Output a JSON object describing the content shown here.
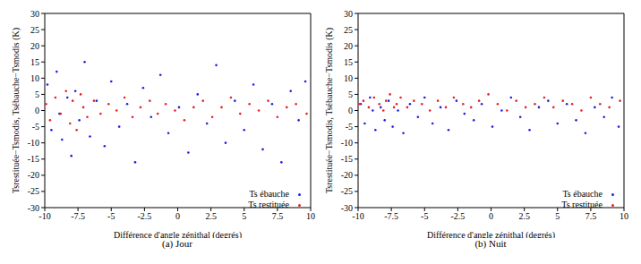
{
  "chart_data": [
    {
      "type": "scatter",
      "title": "(a) Jour",
      "x_label": "Différence d'angle zénithal (degrés)",
      "y_label": "Tsrestituée−Tsmodis, Tsébauche−Tsmodis (K)",
      "xlim": [
        -10,
        10
      ],
      "xticks": [
        -10,
        -7.5,
        -5,
        -2.5,
        0,
        2.5,
        5,
        7.5,
        10
      ],
      "ylim": [
        -30,
        30
      ],
      "yticks": [
        -30,
        -25,
        -20,
        -15,
        -10,
        -5,
        0,
        5,
        10,
        15,
        20,
        25,
        30
      ],
      "grid": false,
      "legend": "bottom right",
      "marker": "point",
      "series": [
        {
          "name": "Ts ébauche",
          "color": "#1f1fe8",
          "x": [
            -9.8,
            -9.5,
            -9.1,
            -8.7,
            -8.3,
            -8.0,
            -7.7,
            -7.4,
            -7.0,
            -6.6,
            -6.1,
            -5.5,
            -5.0,
            -4.4,
            -3.8,
            -3.2,
            -2.6,
            -2.0,
            -1.3,
            -0.7,
            0.1,
            0.8,
            1.5,
            2.2,
            2.9,
            3.6,
            4.3,
            5.0,
            5.7,
            6.4,
            7.1,
            7.8,
            8.5,
            9.1,
            9.6,
            -8.9
          ],
          "values": [
            8,
            -6,
            12,
            -9,
            4,
            -14,
            6,
            -3,
            15,
            -8,
            3,
            -11,
            9,
            -5,
            2,
            -16,
            7,
            -2,
            11,
            -7,
            1,
            -13,
            5,
            -4,
            14,
            -10,
            3,
            -6,
            8,
            -12,
            2,
            -16,
            6,
            -3,
            9,
            -1
          ]
        },
        {
          "name": "Ts restituée",
          "color": "#e8202a",
          "x": [
            -9.9,
            -9.6,
            -9.2,
            -8.8,
            -8.4,
            -8.1,
            -7.9,
            -7.6,
            -7.3,
            -7.1,
            -6.8,
            -6.3,
            -5.8,
            -5.2,
            -4.6,
            -4.0,
            -3.4,
            -2.8,
            -2.1,
            -1.5,
            -0.9,
            -0.2,
            0.5,
            1.2,
            1.9,
            2.6,
            3.3,
            4.0,
            4.7,
            5.4,
            6.1,
            6.8,
            7.5,
            8.2,
            8.9,
            9.7
          ],
          "values": [
            2,
            -3,
            4,
            -1,
            6,
            -4,
            3,
            -6,
            5,
            1,
            -2,
            3,
            -1,
            2,
            0,
            4,
            -2,
            1,
            3,
            -1,
            2,
            0,
            -3,
            1,
            3,
            -2,
            1,
            4,
            -1,
            2,
            0,
            3,
            -2,
            1,
            2,
            -1
          ]
        }
      ]
    },
    {
      "type": "scatter",
      "title": "(b) Nuit",
      "x_label": "Différence d'angle zénithal (degrés)",
      "y_label": "Tsrestituée−Tsmodis, Tsébauche−Tsmodis (K)",
      "xlim": [
        -10,
        10
      ],
      "xticks": [
        -10,
        -7.5,
        -5,
        -2.5,
        0,
        2.5,
        5,
        7.5,
        10
      ],
      "ylim": [
        -30,
        30
      ],
      "yticks": [
        -30,
        -25,
        -20,
        -15,
        -10,
        -5,
        0,
        5,
        10,
        15,
        20,
        25,
        30
      ],
      "grid": false,
      "legend": "bottom right",
      "marker": "point",
      "series": [
        {
          "name": "Ts ébauche",
          "color": "#1f1fe8",
          "x": [
            -9.8,
            -9.5,
            -9.1,
            -8.7,
            -8.3,
            -8.0,
            -7.7,
            -7.4,
            -7.0,
            -6.6,
            -6.1,
            -5.5,
            -5.0,
            -4.4,
            -3.8,
            -3.2,
            -2.6,
            -2.0,
            -1.3,
            -0.7,
            0.1,
            0.8,
            1.5,
            2.2,
            2.9,
            3.6,
            4.3,
            5.0,
            5.7,
            6.4,
            7.1,
            7.8,
            8.5,
            9.1,
            9.6,
            -8.9
          ],
          "values": [
            2,
            -4,
            4,
            -6,
            1,
            -3,
            3,
            -5,
            0,
            -7,
            2,
            -2,
            4,
            -4,
            1,
            -6,
            3,
            -1,
            -3,
            2,
            -5,
            0,
            4,
            -2,
            -6,
            1,
            3,
            -4,
            2,
            -3,
            -7,
            1,
            -2,
            4,
            -5,
            0
          ]
        },
        {
          "name": "Ts restituée",
          "color": "#e8202a",
          "x": [
            -9.9,
            -9.6,
            -9.2,
            -8.8,
            -8.4,
            -8.1,
            -7.9,
            -7.6,
            -7.3,
            -7.1,
            -6.8,
            -6.3,
            -5.8,
            -5.2,
            -4.6,
            -4.0,
            -3.4,
            -2.8,
            -2.1,
            -1.5,
            -0.9,
            -0.2,
            0.5,
            1.2,
            1.9,
            2.6,
            3.3,
            4.0,
            4.7,
            5.4,
            6.1,
            6.8,
            7.5,
            8.2,
            8.9,
            9.7
          ],
          "values": [
            2,
            3,
            1,
            4,
            2,
            0,
            3,
            5,
            1,
            2,
            4,
            1,
            3,
            2,
            0,
            3,
            1,
            4,
            2,
            1,
            3,
            5,
            2,
            0,
            3,
            1,
            2,
            4,
            1,
            3,
            2,
            0,
            4,
            2,
            1,
            3
          ]
        }
      ]
    }
  ]
}
